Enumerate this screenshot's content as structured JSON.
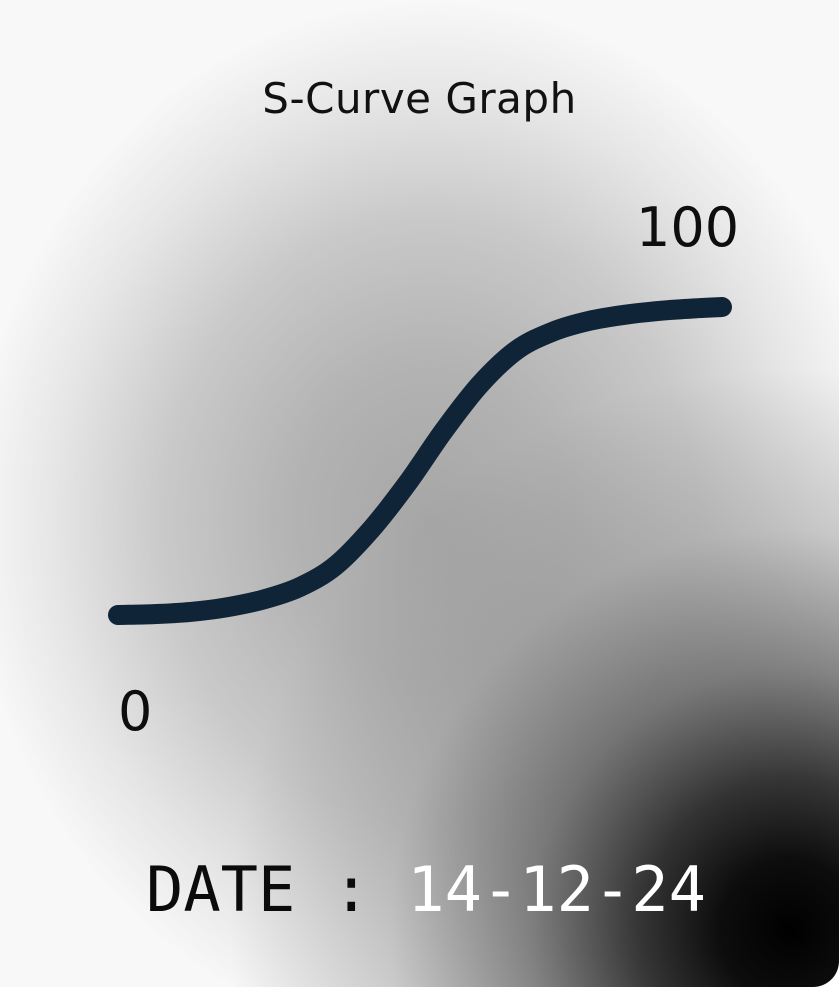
{
  "chart_data": {
    "type": "line",
    "title": "S-Curve Graph",
    "y_start_label": "0",
    "y_end_label": "100",
    "ylim": [
      0,
      100
    ],
    "series": [
      {
        "color": "#0f2436",
        "points": [
          {
            "x": 0.0,
            "y": 0
          },
          {
            "x": 0.06,
            "y": 0.3
          },
          {
            "x": 0.12,
            "y": 1
          },
          {
            "x": 0.18,
            "y": 2.5
          },
          {
            "x": 0.24,
            "y": 5
          },
          {
            "x": 0.3,
            "y": 9
          },
          {
            "x": 0.36,
            "y": 16
          },
          {
            "x": 0.42,
            "y": 28
          },
          {
            "x": 0.48,
            "y": 43
          },
          {
            "x": 0.54,
            "y": 60
          },
          {
            "x": 0.6,
            "y": 75
          },
          {
            "x": 0.66,
            "y": 86
          },
          {
            "x": 0.72,
            "y": 92
          },
          {
            "x": 0.78,
            "y": 95.5
          },
          {
            "x": 0.84,
            "y": 97.5
          },
          {
            "x": 0.9,
            "y": 98.8
          },
          {
            "x": 0.96,
            "y": 99.6
          },
          {
            "x": 1.0,
            "y": 100
          }
        ]
      }
    ]
  },
  "footer": {
    "date_label": "DATE",
    "separator": ":",
    "date_value": "14-12-24"
  },
  "colors": {
    "curve": "#0f2436",
    "date_value": "#ffffff",
    "text": "#111111"
  }
}
